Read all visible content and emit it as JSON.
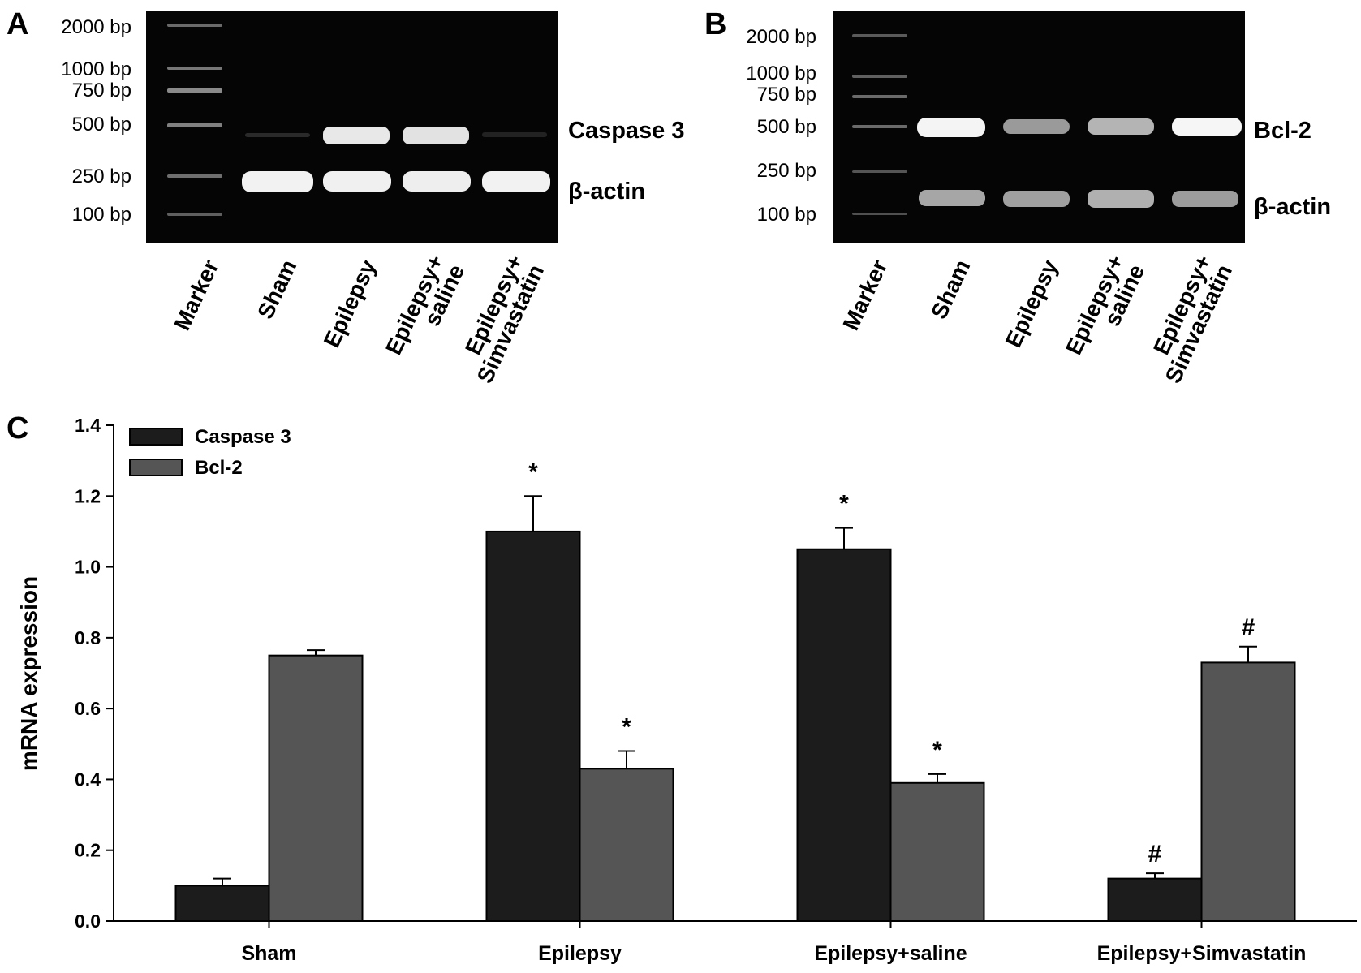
{
  "panels": {
    "A": {
      "letter": "A",
      "ladder": [
        "2000 bp",
        "1000 bp",
        "750 bp",
        "500 bp",
        "250 bp",
        "100 bp"
      ],
      "bands": [
        "Caspase 3",
        "β-actin"
      ],
      "lanes": [
        {
          "lines": [
            "Marker"
          ]
        },
        {
          "lines": [
            "Sham"
          ]
        },
        {
          "lines": [
            "Epilepsy"
          ]
        },
        {
          "lines": [
            "Epilepsy+",
            "saline"
          ]
        },
        {
          "lines": [
            "Epilepsy+",
            "Simvastatin"
          ]
        }
      ]
    },
    "B": {
      "letter": "B",
      "ladder": [
        "2000 bp",
        "1000 bp",
        "750 bp",
        "500 bp",
        "250 bp",
        "100 bp"
      ],
      "bands": [
        "Bcl-2",
        "β-actin"
      ],
      "lanes": [
        {
          "lines": [
            "Marker"
          ]
        },
        {
          "lines": [
            "Sham"
          ]
        },
        {
          "lines": [
            "Epilepsy"
          ]
        },
        {
          "lines": [
            "Epilepsy+",
            "saline"
          ]
        },
        {
          "lines": [
            "Epilepsy+",
            "Simvastatin"
          ]
        }
      ]
    },
    "C": {
      "letter": "C"
    }
  },
  "chart_data": {
    "type": "bar",
    "ylabel": "mRNA expression",
    "xlabel": "",
    "ylim": [
      0,
      1.4
    ],
    "yticks": [
      "0.0",
      "0.2",
      "0.4",
      "0.6",
      "0.8",
      "1.0",
      "1.2",
      "1.4"
    ],
    "categories": [
      "Sham",
      "Epilepsy",
      "Epilepsy+saline",
      "Epilepsy+Simvastatin"
    ],
    "legend_position": "top-left",
    "series": [
      {
        "name": "Caspase 3",
        "color": "#1c1c1c",
        "values": [
          0.1,
          1.1,
          1.05,
          0.12
        ],
        "errors": [
          0.02,
          0.1,
          0.06,
          0.015
        ],
        "annotations": [
          "",
          "*",
          "*",
          "#"
        ]
      },
      {
        "name": "Bcl-2",
        "color": "#555555",
        "values": [
          0.75,
          0.43,
          0.39,
          0.73
        ],
        "errors": [
          0.015,
          0.05,
          0.025,
          0.045
        ],
        "annotations": [
          "",
          "*",
          "*",
          "#"
        ]
      }
    ]
  }
}
